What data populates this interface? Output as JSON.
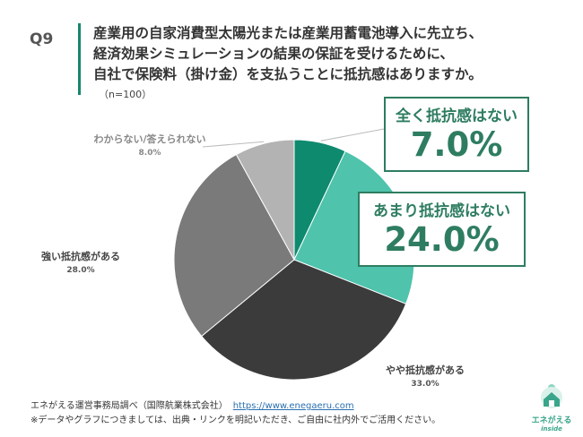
{
  "question": {
    "number": "Q9",
    "lines": [
      "産業用の自家消費型太陽光または産業用蓄電池導入に先立ち、",
      "経済効果シミュレーションの結果の保証を受けるために、",
      "自社で保険料（掛け金）を支払うことに抵抗感はありますか。"
    ],
    "sample": "（n=100）"
  },
  "chart_data": {
    "type": "pie",
    "title": "",
    "slices": [
      {
        "label": "全く抵抗感はない",
        "value": 7.0,
        "display": "7.0%",
        "color": "#0e8a6f"
      },
      {
        "label": "あまり抵抗感はない",
        "value": 24.0,
        "display": "24.0%",
        "color": "#4fc3ac"
      },
      {
        "label": "やや抵抗感がある",
        "value": 33.0,
        "display": "33.0%",
        "color": "#3b3b3b"
      },
      {
        "label": "強い抵抗感がある",
        "value": 28.0,
        "display": "28.0%",
        "color": "#7a7a7a"
      },
      {
        "label": "わからない/答えられない",
        "value": 8.0,
        "display": "8.0%",
        "color": "#b3b3b3"
      }
    ],
    "start_angle": "12 o'clock",
    "direction": "clockwise"
  },
  "footer": {
    "source": "エネがえる運営事務局調べ（国際航業株式会社）",
    "url": "https://www.enegaeru.com",
    "note": "※データやグラフにつきましては、出典・リンクを明記いただき、ご自由に社内外でご活用ください。"
  },
  "logo": {
    "name": "エネがえる",
    "sub": "inside",
    "icon": "house-sun-logo-icon"
  }
}
